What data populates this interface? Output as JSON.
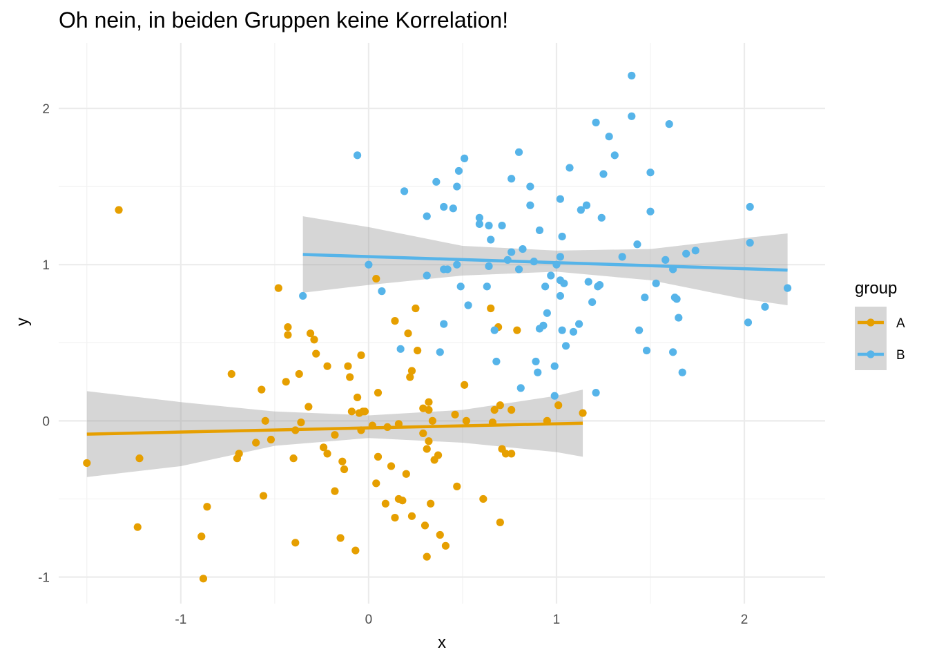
{
  "chart_data": {
    "type": "scatter",
    "title": "Oh nein, in beiden Gruppen keine Korrelation!",
    "xlabel": "x",
    "ylabel": "y",
    "xlim": [
      -1.5,
      2.25
    ],
    "ylim": [
      -1.05,
      2.3
    ],
    "x_ticks": [
      -1,
      0,
      1,
      2
    ],
    "y_ticks": [
      -1,
      0,
      1,
      2
    ],
    "grid": true,
    "legend": {
      "title": "group",
      "placement": "right"
    },
    "series": [
      {
        "name": "A",
        "color": "#E69F00",
        "trend": {
          "x": [
            -1.5,
            1.14
          ],
          "y": [
            -0.085,
            -0.015
          ]
        },
        "ci": {
          "x": [
            -1.5,
            -1.0,
            -0.5,
            0.0,
            0.5,
            1.0,
            1.14
          ],
          "upper": [
            0.19,
            0.12,
            0.06,
            0.035,
            0.07,
            0.16,
            0.2
          ],
          "lower": [
            -0.36,
            -0.29,
            -0.16,
            -0.11,
            -0.14,
            -0.2,
            -0.23
          ]
        },
        "points": [
          [
            -1.5,
            -0.27
          ],
          [
            -1.33,
            1.35
          ],
          [
            -1.22,
            -0.24
          ],
          [
            -1.23,
            -0.68
          ],
          [
            -0.89,
            -0.74
          ],
          [
            -0.88,
            -1.01
          ],
          [
            -0.86,
            -0.55
          ],
          [
            -0.73,
            0.3
          ],
          [
            -0.7,
            -0.24
          ],
          [
            -0.69,
            -0.21
          ],
          [
            -0.6,
            -0.14
          ],
          [
            -0.57,
            0.2
          ],
          [
            -0.56,
            -0.48
          ],
          [
            -0.55,
            0.0
          ],
          [
            -0.52,
            -0.12
          ],
          [
            -0.48,
            0.85
          ],
          [
            -0.44,
            0.25
          ],
          [
            -0.43,
            0.6
          ],
          [
            -0.43,
            0.55
          ],
          [
            -0.4,
            -0.24
          ],
          [
            -0.39,
            -0.78
          ],
          [
            -0.39,
            -0.06
          ],
          [
            -0.37,
            0.3
          ],
          [
            -0.36,
            -0.01
          ],
          [
            -0.32,
            0.09
          ],
          [
            -0.31,
            0.56
          ],
          [
            -0.29,
            0.52
          ],
          [
            -0.28,
            0.43
          ],
          [
            -0.24,
            -0.17
          ],
          [
            -0.22,
            -0.21
          ],
          [
            -0.22,
            0.35
          ],
          [
            -0.18,
            -0.45
          ],
          [
            -0.18,
            -0.09
          ],
          [
            -0.15,
            -0.75
          ],
          [
            -0.14,
            -0.26
          ],
          [
            -0.13,
            -0.31
          ],
          [
            -0.11,
            0.35
          ],
          [
            -0.1,
            0.28
          ],
          [
            -0.09,
            0.06
          ],
          [
            -0.07,
            -0.83
          ],
          [
            -0.06,
            0.15
          ],
          [
            -0.05,
            0.05
          ],
          [
            -0.04,
            -0.06
          ],
          [
            -0.04,
            0.42
          ],
          [
            -0.03,
            0.06
          ],
          [
            -0.02,
            0.06
          ],
          [
            0.02,
            -0.03
          ],
          [
            0.04,
            0.91
          ],
          [
            0.04,
            -0.4
          ],
          [
            0.05,
            -0.23
          ],
          [
            0.05,
            0.18
          ],
          [
            0.09,
            -0.53
          ],
          [
            0.1,
            -0.04
          ],
          [
            0.12,
            -0.29
          ],
          [
            0.14,
            -0.62
          ],
          [
            0.14,
            0.64
          ],
          [
            0.16,
            -0.5
          ],
          [
            0.16,
            -0.02
          ],
          [
            0.18,
            -0.51
          ],
          [
            0.2,
            -0.34
          ],
          [
            0.21,
            0.56
          ],
          [
            0.22,
            0.28
          ],
          [
            0.23,
            -0.61
          ],
          [
            0.23,
            0.32
          ],
          [
            0.25,
            0.72
          ],
          [
            0.26,
            0.45
          ],
          [
            0.29,
            -0.08
          ],
          [
            0.29,
            0.08
          ],
          [
            0.3,
            -0.67
          ],
          [
            0.31,
            -0.87
          ],
          [
            0.31,
            -0.18
          ],
          [
            0.32,
            -0.13
          ],
          [
            0.32,
            0.12
          ],
          [
            0.32,
            0.07
          ],
          [
            0.33,
            -0.53
          ],
          [
            0.34,
            0.0
          ],
          [
            0.35,
            -0.25
          ],
          [
            0.37,
            -0.22
          ],
          [
            0.38,
            -0.73
          ],
          [
            0.41,
            -0.8
          ],
          [
            0.46,
            0.04
          ],
          [
            0.47,
            -0.42
          ],
          [
            0.51,
            0.23
          ],
          [
            0.52,
            0.0
          ],
          [
            0.61,
            -0.5
          ],
          [
            0.65,
            0.72
          ],
          [
            0.66,
            -0.01
          ],
          [
            0.67,
            0.07
          ],
          [
            0.69,
            0.6
          ],
          [
            0.7,
            -0.65
          ],
          [
            0.7,
            0.1
          ],
          [
            0.71,
            -0.18
          ],
          [
            0.73,
            -0.21
          ],
          [
            0.76,
            -0.21
          ],
          [
            0.76,
            0.07
          ],
          [
            0.79,
            0.58
          ],
          [
            0.95,
            0.0
          ],
          [
            1.01,
            0.1
          ],
          [
            1.14,
            0.05
          ]
        ]
      },
      {
        "name": "B",
        "color": "#56B4E9",
        "trend": {
          "x": [
            -0.35,
            2.23
          ],
          "y": [
            1.065,
            0.965
          ]
        },
        "ci": {
          "x": [
            -0.35,
            0.0,
            0.5,
            1.0,
            1.5,
            2.0,
            2.23
          ],
          "upper": [
            1.31,
            1.24,
            1.12,
            1.09,
            1.1,
            1.17,
            1.2
          ],
          "lower": [
            0.82,
            0.87,
            0.93,
            0.955,
            0.9,
            0.78,
            0.74
          ]
        },
        "points": [
          [
            -0.35,
            0.8
          ],
          [
            -0.06,
            1.7
          ],
          [
            0.0,
            1.0
          ],
          [
            0.07,
            0.83
          ],
          [
            0.17,
            0.46
          ],
          [
            0.19,
            1.47
          ],
          [
            0.31,
            1.31
          ],
          [
            0.31,
            0.93
          ],
          [
            0.36,
            1.53
          ],
          [
            0.38,
            0.44
          ],
          [
            0.4,
            0.97
          ],
          [
            0.4,
            0.62
          ],
          [
            0.4,
            1.37
          ],
          [
            0.42,
            0.97
          ],
          [
            0.45,
            1.36
          ],
          [
            0.47,
            1.0
          ],
          [
            0.47,
            1.5
          ],
          [
            0.48,
            1.6
          ],
          [
            0.49,
            0.86
          ],
          [
            0.51,
            1.68
          ],
          [
            0.53,
            0.74
          ],
          [
            0.59,
            1.3
          ],
          [
            0.59,
            1.26
          ],
          [
            0.63,
            0.86
          ],
          [
            0.64,
            1.25
          ],
          [
            0.64,
            0.99
          ],
          [
            0.65,
            1.16
          ],
          [
            0.67,
            0.58
          ],
          [
            0.68,
            0.38
          ],
          [
            0.71,
            1.25
          ],
          [
            0.74,
            1.03
          ],
          [
            0.76,
            1.55
          ],
          [
            0.76,
            1.08
          ],
          [
            0.8,
            1.72
          ],
          [
            0.8,
            0.97
          ],
          [
            0.81,
            0.21
          ],
          [
            0.82,
            1.1
          ],
          [
            0.86,
            1.38
          ],
          [
            0.86,
            1.5
          ],
          [
            0.88,
            1.02
          ],
          [
            0.89,
            0.38
          ],
          [
            0.9,
            0.31
          ],
          [
            0.91,
            1.22
          ],
          [
            0.91,
            0.59
          ],
          [
            0.93,
            0.61
          ],
          [
            0.94,
            0.86
          ],
          [
            0.95,
            0.69
          ],
          [
            0.97,
            0.93
          ],
          [
            0.99,
            0.35
          ],
          [
            0.99,
            0.16
          ],
          [
            1.0,
            1.0
          ],
          [
            1.02,
            0.8
          ],
          [
            1.02,
            0.9
          ],
          [
            1.02,
            1.42
          ],
          [
            1.02,
            1.05
          ],
          [
            1.03,
            1.18
          ],
          [
            1.03,
            0.58
          ],
          [
            1.04,
            0.88
          ],
          [
            1.05,
            0.48
          ],
          [
            1.07,
            1.62
          ],
          [
            1.09,
            0.57
          ],
          [
            1.12,
            0.62
          ],
          [
            1.13,
            1.35
          ],
          [
            1.16,
            1.38
          ],
          [
            1.17,
            0.89
          ],
          [
            1.19,
            0.76
          ],
          [
            1.21,
            1.91
          ],
          [
            1.21,
            0.18
          ],
          [
            1.22,
            0.86
          ],
          [
            1.23,
            0.87
          ],
          [
            1.24,
            1.3
          ],
          [
            1.25,
            1.58
          ],
          [
            1.28,
            1.82
          ],
          [
            1.31,
            1.7
          ],
          [
            1.35,
            1.05
          ],
          [
            1.4,
            2.21
          ],
          [
            1.4,
            1.95
          ],
          [
            1.43,
            1.13
          ],
          [
            1.44,
            0.58
          ],
          [
            1.47,
            0.79
          ],
          [
            1.48,
            0.45
          ],
          [
            1.5,
            1.34
          ],
          [
            1.5,
            1.59
          ],
          [
            1.53,
            0.88
          ],
          [
            1.58,
            1.03
          ],
          [
            1.6,
            1.9
          ],
          [
            1.62,
            0.44
          ],
          [
            1.62,
            0.97
          ],
          [
            1.63,
            0.79
          ],
          [
            1.64,
            0.78
          ],
          [
            1.65,
            0.66
          ],
          [
            1.67,
            0.31
          ],
          [
            1.69,
            1.07
          ],
          [
            1.74,
            1.09
          ],
          [
            2.02,
            0.63
          ],
          [
            2.03,
            1.14
          ],
          [
            2.03,
            1.37
          ],
          [
            2.11,
            0.73
          ],
          [
            2.23,
            0.85
          ]
        ]
      }
    ]
  }
}
